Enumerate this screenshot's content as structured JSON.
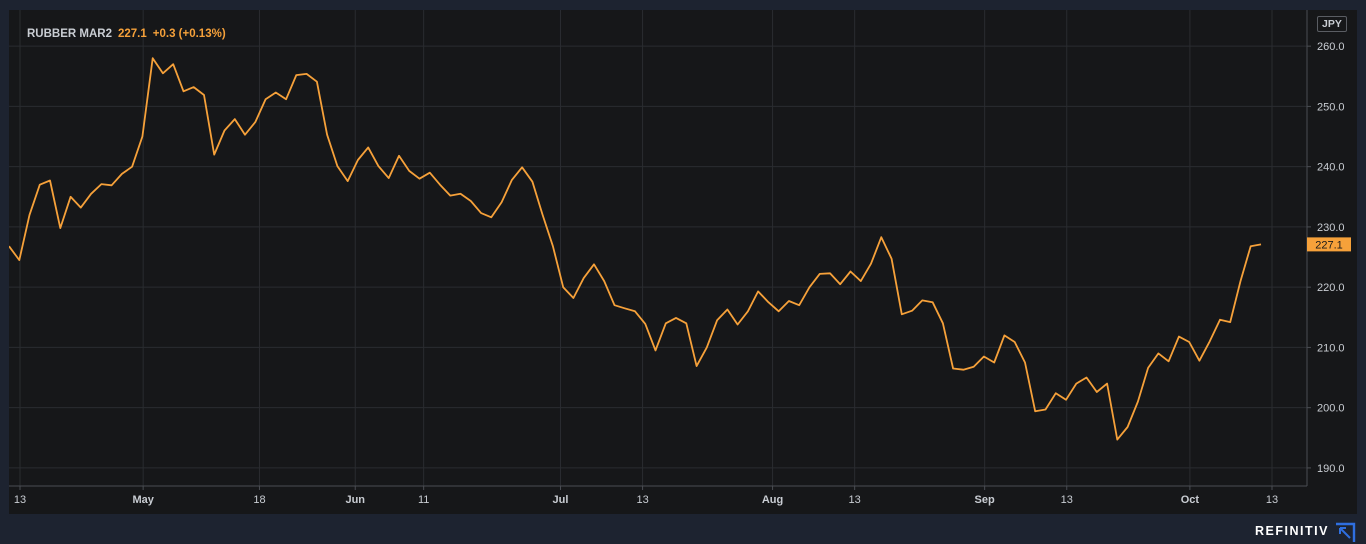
{
  "legend": {
    "symbol": "RUBBER MAR2",
    "price": "227.1",
    "change": "+0.3 (+0.13%)"
  },
  "currency": "JPY",
  "brand": "REFINITIV",
  "colors": {
    "line": "#f6a13a",
    "background": "#161719"
  },
  "chart_data": {
    "type": "line",
    "title": "",
    "xlabel": "",
    "ylabel": "",
    "ylim": [
      187,
      266
    ],
    "y_ticks": [
      190,
      200,
      210,
      220,
      230,
      240,
      250,
      260
    ],
    "y_tick_labels": [
      "190.0",
      "200.0",
      "210.0",
      "220.0",
      "230.0",
      "240.0",
      "250.0",
      "260.0"
    ],
    "x_ticks": [
      {
        "label": "13",
        "date": "2021-04-13",
        "major": false
      },
      {
        "label": "May",
        "date": "2021-05-01",
        "major": true
      },
      {
        "label": "18",
        "date": "2021-05-18",
        "major": false
      },
      {
        "label": "Jun",
        "date": "2021-06-01",
        "major": true
      },
      {
        "label": "11",
        "date": "2021-06-11",
        "major": false
      },
      {
        "label": "Jul",
        "date": "2021-07-01",
        "major": true
      },
      {
        "label": "13",
        "date": "2021-07-13",
        "major": false
      },
      {
        "label": "Aug",
        "date": "2021-08-01",
        "major": true
      },
      {
        "label": "13",
        "date": "2021-08-13",
        "major": false
      },
      {
        "label": "Sep",
        "date": "2021-09-01",
        "major": true
      },
      {
        "label": "13",
        "date": "2021-09-13",
        "major": false
      },
      {
        "label": "Oct",
        "date": "2021-10-01",
        "major": true
      },
      {
        "label": "13",
        "date": "2021-10-13",
        "major": false
      }
    ],
    "last_value_label": "227.1",
    "grid": true,
    "series": [
      {
        "name": "RUBBER MAR2",
        "values": [
          226.8,
          224.5,
          232.0,
          237.0,
          237.7,
          229.8,
          235.0,
          233.2,
          235.5,
          237.1,
          236.9,
          238.8,
          240.0,
          245.0,
          258.0,
          255.5,
          257.0,
          252.5,
          253.2,
          251.9,
          242.0,
          246.0,
          247.9,
          245.3,
          247.4,
          251.2,
          252.3,
          251.2,
          255.2,
          255.4,
          254.1,
          245.3,
          240.1,
          237.6,
          241.1,
          243.2,
          240.1,
          238.1,
          241.8,
          239.3,
          238.0,
          239.0,
          237.0,
          235.2,
          235.5,
          234.3,
          232.3,
          231.6,
          234.1,
          237.8,
          239.9,
          237.5,
          232.0,
          226.8,
          220.0,
          218.2,
          221.5,
          223.8,
          221.0,
          217.0,
          216.5,
          216.0,
          213.9,
          209.5,
          214.0,
          214.9,
          214.0,
          206.9,
          210.0,
          214.5,
          216.3,
          213.8,
          216.0,
          219.3,
          217.5,
          216.0,
          217.7,
          217.0,
          220.0,
          222.2,
          222.3,
          220.5,
          222.6,
          221.0,
          223.9,
          228.3,
          224.7,
          215.5,
          216.1,
          217.8,
          217.5,
          214.0,
          206.5,
          206.3,
          206.8,
          208.5,
          207.5,
          212.0,
          210.9,
          207.5,
          199.4,
          199.7,
          202.4,
          201.3,
          204.0,
          205.0,
          202.6,
          204.0,
          194.7,
          196.8,
          201.0,
          206.6,
          209.0,
          207.7,
          211.8,
          210.9,
          207.8,
          211.0,
          214.6,
          214.2,
          221.0,
          226.8,
          227.1
        ]
      }
    ]
  }
}
